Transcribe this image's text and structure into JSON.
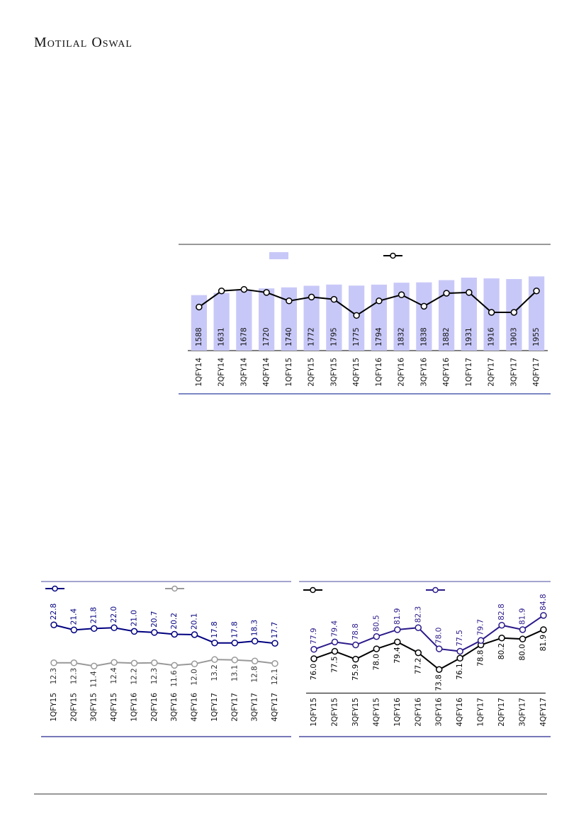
{
  "header": {
    "brand": "Motilal Oswal"
  },
  "chart_data": [
    {
      "type": "bar",
      "categories": [
        "1QFY14",
        "2QFY14",
        "3QFY14",
        "4QFY14",
        "1QFY15",
        "2QFY15",
        "3QFY15",
        "4QFY15",
        "1QFY16",
        "2QFY16",
        "3QFY16",
        "4QFY16",
        "1QFY17",
        "2QFY17",
        "3QFY17",
        "4QFY17"
      ],
      "ylim": [
        500,
        2000
      ],
      "y2lim": [
        0,
        100
      ],
      "series": [
        {
          "type": "bar",
          "color": "#c8c8f8",
          "values": [
            1588,
            1631,
            1678,
            1720,
            1740,
            1772,
            1795,
            1775,
            1794,
            1832,
            1838,
            1882,
            1931,
            1916,
            1903,
            1955
          ]
        },
        {
          "type": "line",
          "axis": "y2",
          "color": "#000000",
          "values": [
            57,
            78,
            80,
            76,
            65,
            70,
            67,
            46,
            65,
            73,
            58,
            75,
            76,
            50,
            50,
            78
          ]
        }
      ]
    },
    {
      "type": "line",
      "categories": [
        "1QFY15",
        "2QFY15",
        "3QFY15",
        "4QFY15",
        "1QFY16",
        "2QFY16",
        "3QFY16",
        "4QFY16",
        "1QFY17",
        "2QFY17",
        "3QFY17",
        "4QFY17"
      ],
      "ylim": [
        5,
        25
      ],
      "series": [
        {
          "color": "#000080",
          "values": [
            22.8,
            21.4,
            21.8,
            22.0,
            21.0,
            20.7,
            20.2,
            20.1,
            17.8,
            17.8,
            18.3,
            17.7
          ],
          "value_labels": [
            "22.8",
            "21.4",
            "21.8",
            "22.0",
            "21.0",
            "20.7",
            "20.2",
            "20.1",
            "17.8",
            "17.8",
            "18.3",
            "17.7"
          ]
        },
        {
          "color": "#999999",
          "values": [
            12.3,
            12.3,
            11.4,
            12.4,
            12.2,
            12.3,
            11.6,
            12.0,
            13.2,
            13.1,
            12.8,
            12.1
          ],
          "value_labels": [
            "12.3",
            "12.3",
            "11.4",
            "12.4",
            "12.2",
            "12.3",
            "11.6",
            "12.0",
            "13.2",
            "13.1",
            "12.8",
            "12.1"
          ]
        }
      ]
    },
    {
      "type": "line",
      "categories": [
        "1QFY15",
        "2QFY15",
        "3QFY15",
        "4QFY15",
        "1QFY16",
        "2QFY16",
        "3QFY16",
        "4QFY16",
        "1QFY17",
        "2QFY17",
        "3QFY17",
        "4QFY17"
      ],
      "ylim": [
        69,
        86
      ],
      "series": [
        {
          "color": "#000000",
          "values": [
            76.0,
            77.5,
            75.9,
            78.0,
            79.4,
            77.2,
            73.8,
            76.1,
            78.8,
            80.2,
            80.0,
            81.9
          ],
          "value_labels": [
            "76.0",
            "77.5",
            "75.9",
            "78.0",
            "79.4",
            "77.2",
            "73.8",
            "76.1",
            "78.8",
            "80.2",
            "80.0",
            "81.9"
          ]
        },
        {
          "color": "#2a1a8a",
          "values": [
            77.9,
            79.4,
            78.8,
            80.5,
            81.9,
            82.3,
            78.0,
            77.5,
            79.7,
            82.8,
            81.9,
            84.8
          ],
          "value_labels": [
            "77.9",
            "79.4",
            "78.8",
            "80.5",
            "81.9",
            "82.3",
            "78.0",
            "77.5",
            "79.7",
            "82.8",
            "81.9",
            "84.8"
          ]
        }
      ]
    }
  ]
}
